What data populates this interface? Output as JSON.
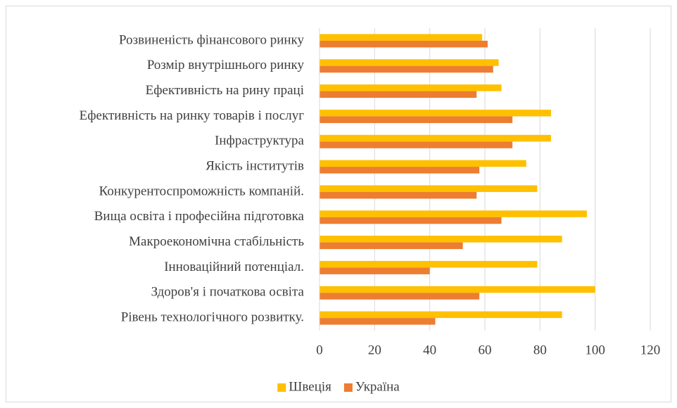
{
  "chart_data": {
    "type": "hbar",
    "categories": [
      "Розвиненість фінансового ринку",
      "Розмір внутрішнього ринку",
      "Ефективність на рину праці",
      "Ефективність на ринку товарів і послуг",
      "Інфраструктура",
      "Якість інститутів",
      "Конкурентоспроможність компаній.",
      "Вища освіта і професійна підготовка",
      "Макроекономічна стабільність",
      "Інноваційний потенціал.",
      "Здоров'я і початкова освіта",
      "Рівень технологічного розвитку."
    ],
    "series": [
      {
        "name": "Швеція",
        "color": "#ffc000",
        "values": [
          59,
          65,
          66,
          84,
          84,
          75,
          79,
          97,
          88,
          79,
          100,
          88
        ]
      },
      {
        "name": "Україна",
        "color": "#ed7d31",
        "values": [
          61,
          63,
          57,
          70,
          70,
          58,
          57,
          66,
          52,
          40,
          58,
          42
        ]
      }
    ],
    "xlim": [
      0,
      120
    ],
    "xticks": [
      0,
      20,
      40,
      60,
      80,
      100,
      120
    ],
    "grid": true,
    "legend": "bottom"
  }
}
